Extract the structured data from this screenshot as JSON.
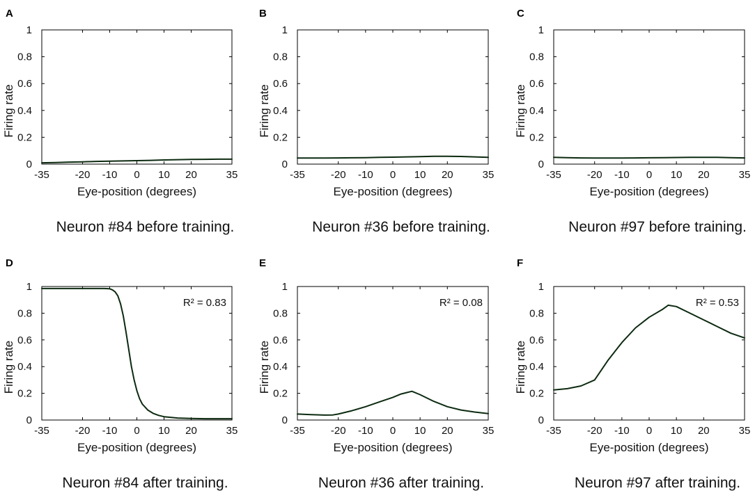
{
  "chart_data": [
    {
      "type": "line",
      "panel": "A",
      "caption": "Neuron #84 before training.",
      "xlabel": "Eye-position (degrees)",
      "ylabel": "Firing rate",
      "xlim": [
        -35,
        35
      ],
      "ylim": [
        0,
        1
      ],
      "xticks": [
        -35,
        -20,
        -10,
        0,
        10,
        20,
        35
      ],
      "yticks": [
        0,
        0.2,
        0.4,
        0.6,
        0.8,
        1
      ],
      "x": [
        -35,
        -30,
        -25,
        -20,
        -15,
        -10,
        -5,
        0,
        5,
        10,
        15,
        20,
        25,
        30,
        35
      ],
      "y": [
        0.01,
        0.012,
        0.015,
        0.017,
        0.02,
        0.022,
        0.024,
        0.026,
        0.028,
        0.031,
        0.033,
        0.035,
        0.036,
        0.037,
        0.037
      ]
    },
    {
      "type": "line",
      "panel": "B",
      "caption": "Neuron #36 before training.",
      "xlabel": "Eye-position (degrees)",
      "ylabel": "Firing rate",
      "xlim": [
        -35,
        35
      ],
      "ylim": [
        0,
        1
      ],
      "xticks": [
        -35,
        -20,
        -10,
        0,
        10,
        20,
        35
      ],
      "yticks": [
        0,
        0.2,
        0.4,
        0.6,
        0.8,
        1
      ],
      "x": [
        -35,
        -30,
        -25,
        -20,
        -15,
        -10,
        -5,
        0,
        5,
        10,
        15,
        20,
        25,
        30,
        35
      ],
      "y": [
        0.045,
        0.045,
        0.045,
        0.046,
        0.047,
        0.048,
        0.05,
        0.052,
        0.054,
        0.056,
        0.058,
        0.058,
        0.057,
        0.054,
        0.05
      ]
    },
    {
      "type": "line",
      "panel": "C",
      "caption": "Neuron #97 before training.",
      "xlabel": "Eye-position (degrees)",
      "ylabel": "Firing rate",
      "xlim": [
        -35,
        35
      ],
      "ylim": [
        0,
        1
      ],
      "xticks": [
        -35,
        -20,
        -10,
        0,
        10,
        20,
        35
      ],
      "yticks": [
        0,
        0.2,
        0.4,
        0.6,
        0.8,
        1
      ],
      "x": [
        -35,
        -30,
        -25,
        -20,
        -15,
        -10,
        -5,
        0,
        5,
        10,
        15,
        20,
        25,
        30,
        35
      ],
      "y": [
        0.05,
        0.048,
        0.046,
        0.045,
        0.045,
        0.045,
        0.046,
        0.047,
        0.048,
        0.049,
        0.05,
        0.05,
        0.05,
        0.048,
        0.046
      ]
    },
    {
      "type": "line",
      "panel": "D",
      "caption": "Neuron #84 after training.",
      "annotation": "R² = 0.83",
      "xlabel": "Eye-position (degrees)",
      "ylabel": "Firing rate",
      "xlim": [
        -35,
        35
      ],
      "ylim": [
        0,
        1
      ],
      "xticks": [
        -35,
        -20,
        -10,
        0,
        10,
        20,
        35
      ],
      "yticks": [
        0,
        0.2,
        0.4,
        0.6,
        0.8,
        1
      ],
      "x": [
        -35,
        -30,
        -25,
        -20,
        -15,
        -12,
        -10,
        -9,
        -8,
        -7,
        -6,
        -5,
        -4,
        -3,
        -2,
        -1,
        0,
        1,
        2,
        4,
        6,
        8,
        10,
        15,
        20,
        25,
        30,
        35
      ],
      "y": [
        0.985,
        0.985,
        0.985,
        0.985,
        0.985,
        0.985,
        0.983,
        0.975,
        0.96,
        0.93,
        0.87,
        0.78,
        0.66,
        0.53,
        0.4,
        0.3,
        0.22,
        0.16,
        0.12,
        0.075,
        0.05,
        0.035,
        0.025,
        0.015,
        0.012,
        0.01,
        0.01,
        0.01
      ]
    },
    {
      "type": "line",
      "panel": "E",
      "caption": "Neuron #36 after training.",
      "annotation": "R² = 0.08",
      "xlabel": "Eye-position (degrees)",
      "ylabel": "Firing rate",
      "xlim": [
        -35,
        35
      ],
      "ylim": [
        0,
        1
      ],
      "xticks": [
        -35,
        -20,
        -10,
        0,
        10,
        20,
        35
      ],
      "yticks": [
        0,
        0.2,
        0.4,
        0.6,
        0.8,
        1
      ],
      "x": [
        -35,
        -30,
        -25,
        -22,
        -20,
        -15,
        -10,
        -5,
        0,
        3,
        5,
        7,
        10,
        15,
        20,
        25,
        30,
        35
      ],
      "y": [
        0.045,
        0.04,
        0.037,
        0.038,
        0.045,
        0.07,
        0.1,
        0.135,
        0.17,
        0.195,
        0.205,
        0.215,
        0.19,
        0.14,
        0.1,
        0.075,
        0.06,
        0.048
      ]
    },
    {
      "type": "line",
      "panel": "F",
      "caption": "Neuron #97 after training.",
      "annotation": "R² = 0.53",
      "xlabel": "Eye-position (degrees)",
      "ylabel": "Firing rate",
      "xlim": [
        -35,
        35
      ],
      "ylim": [
        0,
        1
      ],
      "xticks": [
        -35,
        -20,
        -10,
        0,
        10,
        20,
        35
      ],
      "yticks": [
        0,
        0.2,
        0.4,
        0.6,
        0.8,
        1
      ],
      "x": [
        -35,
        -30,
        -25,
        -20,
        -15,
        -10,
        -5,
        0,
        5,
        7,
        10,
        15,
        20,
        25,
        30,
        35
      ],
      "y": [
        0.225,
        0.235,
        0.255,
        0.3,
        0.45,
        0.58,
        0.69,
        0.77,
        0.83,
        0.86,
        0.85,
        0.8,
        0.75,
        0.7,
        0.65,
        0.615
      ]
    }
  ]
}
